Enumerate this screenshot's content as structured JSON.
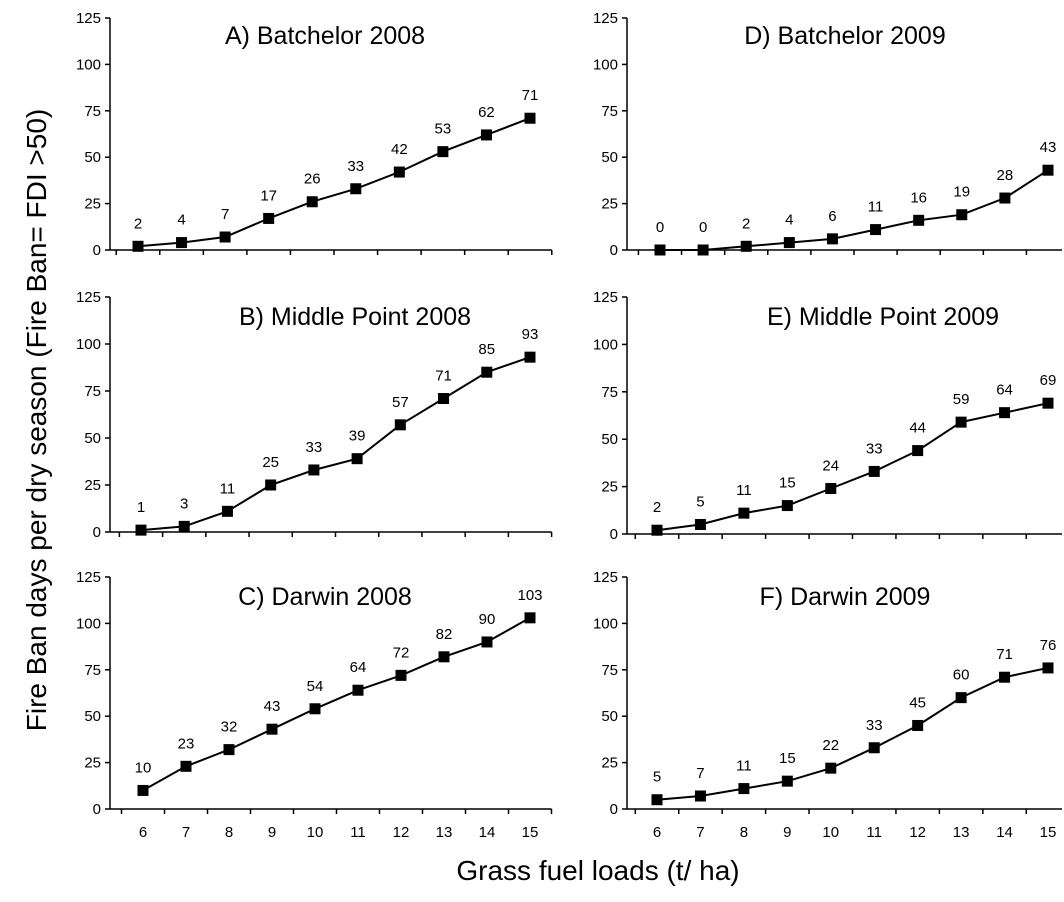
{
  "figure": {
    "ylabel": "Fire Ban days per dry season  (Fire Ban= FDI >50)",
    "xlabel": "Grass fuel loads (t/ ha)"
  },
  "chart_data": [
    {
      "type": "line",
      "title": "A) Batchelor 2008",
      "x": [
        6,
        7,
        8,
        9,
        10,
        11,
        12,
        13,
        14,
        15
      ],
      "values": [
        2,
        4,
        7,
        17,
        26,
        33,
        42,
        53,
        62,
        71
      ],
      "ylim": [
        0,
        125
      ],
      "yticks": [
        0,
        25,
        50,
        75,
        100,
        125
      ],
      "grid": false,
      "show_xticklabels": false
    },
    {
      "type": "line",
      "title": "D) Batchelor 2009",
      "x": [
        6,
        7,
        8,
        9,
        10,
        11,
        12,
        13,
        14,
        15
      ],
      "values": [
        0,
        0,
        2,
        4,
        6,
        11,
        16,
        19,
        28,
        43
      ],
      "ylim": [
        0,
        125
      ],
      "yticks": [
        0,
        25,
        50,
        75,
        100,
        125
      ],
      "grid": false,
      "show_xticklabels": false
    },
    {
      "type": "line",
      "title": "B) Middle Point 2008",
      "x": [
        6,
        7,
        8,
        9,
        10,
        11,
        12,
        13,
        14,
        15
      ],
      "values": [
        1,
        3,
        11,
        25,
        33,
        39,
        57,
        71,
        85,
        93
      ],
      "ylim": [
        0,
        125
      ],
      "yticks": [
        0,
        25,
        50,
        75,
        100,
        125
      ],
      "grid": false,
      "show_xticklabels": false
    },
    {
      "type": "line",
      "title": "E) Middle Point 2009",
      "x": [
        6,
        7,
        8,
        9,
        10,
        11,
        12,
        13,
        14,
        15
      ],
      "values": [
        2,
        5,
        11,
        15,
        24,
        33,
        44,
        59,
        64,
        69
      ],
      "ylim": [
        0,
        125
      ],
      "yticks": [
        0,
        25,
        50,
        75,
        100,
        125
      ],
      "grid": false,
      "show_xticklabels": false
    },
    {
      "type": "line",
      "title": "C) Darwin 2008",
      "x": [
        6,
        7,
        8,
        9,
        10,
        11,
        12,
        13,
        14,
        15
      ],
      "values": [
        10,
        23,
        32,
        43,
        54,
        64,
        72,
        82,
        90,
        103
      ],
      "ylim": [
        0,
        125
      ],
      "yticks": [
        0,
        25,
        50,
        75,
        100,
        125
      ],
      "grid": false,
      "show_xticklabels": true
    },
    {
      "type": "line",
      "title": "F) Darwin 2009",
      "x": [
        6,
        7,
        8,
        9,
        10,
        11,
        12,
        13,
        14,
        15
      ],
      "values": [
        5,
        7,
        11,
        15,
        22,
        33,
        45,
        60,
        71,
        76
      ],
      "ylim": [
        0,
        125
      ],
      "yticks": [
        0,
        25,
        50,
        75,
        100,
        125
      ],
      "grid": false,
      "show_xticklabels": true
    }
  ]
}
